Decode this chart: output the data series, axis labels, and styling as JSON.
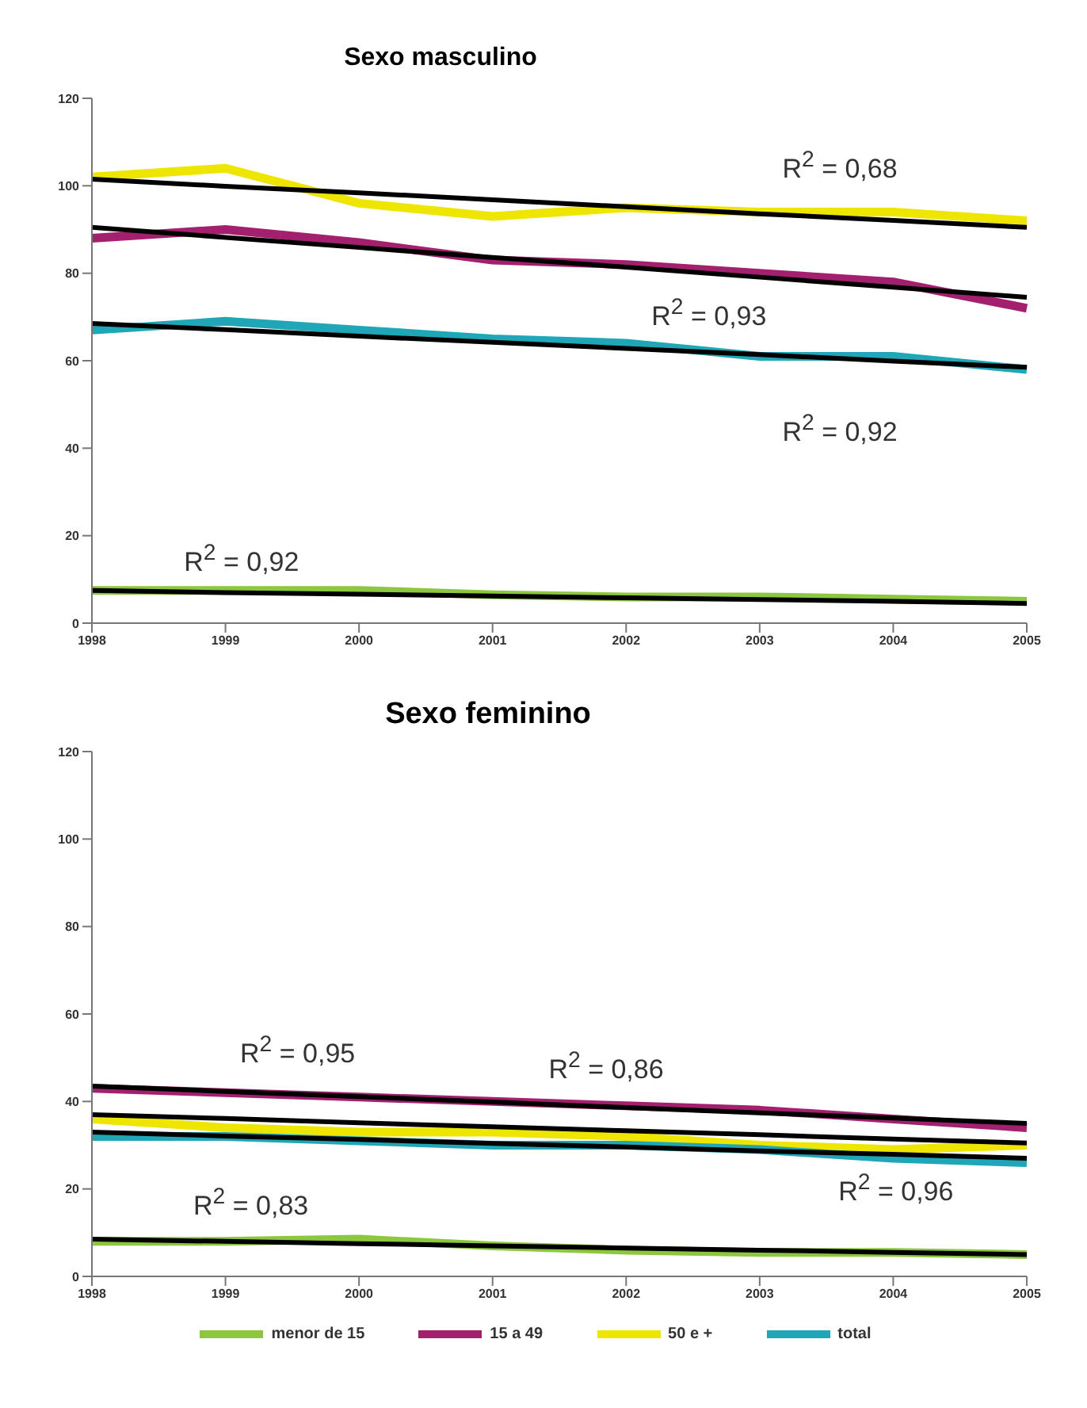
{
  "chart_data": [
    {
      "type": "line",
      "title": "Sexo masculino",
      "categories": [
        "1998",
        "1999",
        "2000",
        "2001",
        "2002",
        "2003",
        "2004",
        "2005"
      ],
      "ylim": [
        0,
        120
      ],
      "yticks": [
        0,
        20,
        40,
        60,
        80,
        100,
        120
      ],
      "grid": false,
      "legend": false,
      "marker": "none",
      "series": [
        {
          "color": "#8dc63f",
          "values": [
            7.5,
            7.5,
            7.5,
            6.5,
            6,
            6,
            5.5,
            5
          ]
        },
        {
          "color": "#a3206f",
          "values": [
            88,
            90,
            87,
            83,
            82,
            80,
            78,
            72
          ]
        },
        {
          "color": "#eee600",
          "values": [
            102,
            104,
            96,
            93,
            95,
            94,
            94,
            92
          ]
        },
        {
          "color": "#1fa7b8",
          "values": [
            67,
            69,
            67,
            65,
            64,
            61,
            61,
            58
          ]
        },
        {
          "color": "#000000",
          "values": [
            7.5,
            7,
            6.6,
            6.2,
            5.8,
            5.4,
            5,
            4.5
          ]
        },
        {
          "color": "#000000",
          "values": [
            90.5,
            88.2,
            85.9,
            83.6,
            81.4,
            79.1,
            76.8,
            74.5
          ]
        },
        {
          "color": "#000000",
          "values": [
            101.5,
            99.9,
            98.4,
            96.8,
            95.2,
            93.6,
            92.1,
            90.5
          ]
        },
        {
          "color": "#000000",
          "values": [
            68.5,
            67.1,
            65.6,
            64.2,
            62.8,
            61.4,
            59.9,
            58.5
          ]
        }
      ],
      "annotations": [
        "R$^{2}$ = 0,68",
        "R$^{2}$ = 0,93",
        "R$^{2}$ = 0,92",
        "R$^{2}$ = 0,92"
      ]
    },
    {
      "type": "line",
      "title": "Sexo feminino",
      "categories": [
        "1998",
        "1999",
        "2000",
        "2001",
        "2002",
        "2003",
        "2004",
        "2005"
      ],
      "ylim": [
        0,
        120
      ],
      "yticks": [
        0,
        20,
        40,
        60,
        80,
        100,
        120
      ],
      "grid": false,
      "legend": "bottom",
      "marker": "none",
      "series": [
        {
          "name": "menor de 15",
          "color": "#8dc63f",
          "values": [
            8,
            8,
            8.5,
            7,
            6,
            5.5,
            5.5,
            5
          ]
        },
        {
          "name": "15 a 49",
          "color": "#a3206f",
          "values": [
            43,
            42,
            41,
            40,
            39,
            38,
            36,
            34
          ]
        },
        {
          "name": "50 e +",
          "color": "#eee600",
          "values": [
            36,
            34,
            33,
            33,
            32,
            30,
            29,
            30
          ]
        },
        {
          "name": "total",
          "color": "#1fa7b8",
          "values": [
            32,
            32,
            31,
            30,
            30,
            29,
            27,
            26
          ]
        },
        {
          "color": "#000000",
          "values": [
            8.5,
            8,
            7.5,
            7,
            6.5,
            6,
            5.5,
            5
          ]
        },
        {
          "color": "#000000",
          "values": [
            43.5,
            42.3,
            41.1,
            39.9,
            38.6,
            37.4,
            36.2,
            35
          ]
        },
        {
          "color": "#000000",
          "values": [
            37,
            36.1,
            35.1,
            34.2,
            33.3,
            32.4,
            31.4,
            30.5
          ]
        },
        {
          "color": "#000000",
          "values": [
            33,
            32.1,
            31.3,
            30.4,
            29.6,
            28.7,
            27.9,
            27
          ]
        }
      ],
      "annotations": [
        "R$^{2}$ = 0,95",
        "R$^{2}$ = 0,86",
        "R$^{2}$ = 0,96",
        "R$^{2}$ = 0,83"
      ]
    }
  ]
}
